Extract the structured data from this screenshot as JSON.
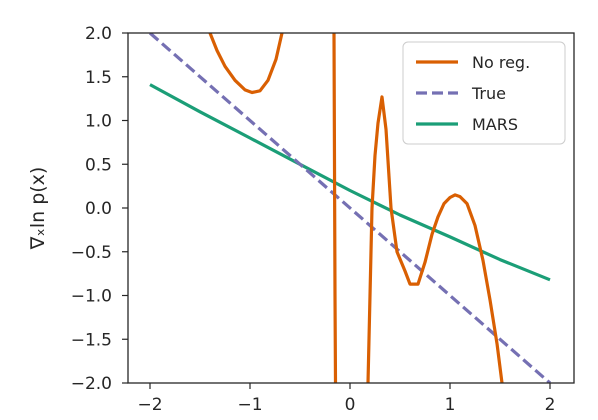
{
  "chart_data": {
    "type": "line",
    "ylabel": "∇ₓln p(x)",
    "xlim": [
      -2.0,
      2.0
    ],
    "ylim": [
      -2.0,
      2.0
    ],
    "x_ticks": [
      -2,
      -1,
      0,
      1,
      2
    ],
    "x_tick_labels": [
      "−2",
      "−1",
      "0",
      "1",
      "2"
    ],
    "y_ticks": [
      2.0,
      1.5,
      1.0,
      0.5,
      0.0,
      -0.5,
      -1.0,
      -1.5,
      -2.0
    ],
    "y_tick_labels": [
      "2.0",
      "1.5",
      "1.0",
      "0.5",
      "0.0",
      "−0.5",
      "−1.0",
      "−1.5",
      "−2.0"
    ],
    "grid": false,
    "legend_position": "top-right",
    "series": [
      {
        "name": "No reg.",
        "color": "#d95f02",
        "style": "solid",
        "segments": [
          [
            [
              -1.4,
              2.0
            ],
            [
              -1.33,
              1.8
            ],
            [
              -1.25,
              1.62
            ],
            [
              -1.15,
              1.46
            ],
            [
              -1.05,
              1.35
            ],
            [
              -0.98,
              1.32
            ],
            [
              -0.9,
              1.34
            ],
            [
              -0.82,
              1.46
            ],
            [
              -0.74,
              1.7
            ],
            [
              -0.68,
              2.0
            ]
          ],
          [
            [
              -0.16,
              2.0
            ],
            [
              -0.155,
              0.5
            ],
            [
              -0.15,
              -1.0
            ],
            [
              -0.145,
              -2.0
            ]
          ],
          [
            [
              0.18,
              -2.0
            ],
            [
              0.2,
              -1.0
            ],
            [
              0.22,
              0.0
            ],
            [
              0.25,
              0.6
            ],
            [
              0.28,
              0.97
            ],
            [
              0.32,
              1.27
            ],
            [
              0.36,
              0.9
            ],
            [
              0.41,
              0.0
            ],
            [
              0.47,
              -0.5
            ],
            [
              0.55,
              -0.72
            ],
            [
              0.6,
              -0.87
            ],
            [
              0.68,
              -0.87
            ],
            [
              0.75,
              -0.62
            ],
            [
              0.82,
              -0.3
            ],
            [
              0.88,
              -0.1
            ],
            [
              0.94,
              0.05
            ],
            [
              1.0,
              0.12
            ],
            [
              1.05,
              0.15
            ],
            [
              1.1,
              0.13
            ],
            [
              1.17,
              0.05
            ],
            [
              1.25,
              -0.2
            ],
            [
              1.33,
              -0.6
            ],
            [
              1.4,
              -1.05
            ],
            [
              1.47,
              -1.55
            ],
            [
              1.52,
              -2.0
            ]
          ]
        ]
      },
      {
        "name": "True",
        "color": "#7570b3",
        "style": "dashed",
        "segments": [
          [
            [
              -2.0,
              2.0
            ],
            [
              2.0,
              -2.0
            ]
          ]
        ]
      },
      {
        "name": "MARS",
        "color": "#1b9e77",
        "style": "solid",
        "segments": [
          [
            [
              -2.0,
              1.41
            ],
            [
              -1.5,
              1.1
            ],
            [
              -1.0,
              0.8
            ],
            [
              -0.5,
              0.5
            ],
            [
              0.0,
              0.2
            ],
            [
              0.5,
              -0.08
            ],
            [
              1.0,
              -0.33
            ],
            [
              1.5,
              -0.59
            ],
            [
              2.0,
              -0.82
            ]
          ]
        ]
      }
    ]
  }
}
